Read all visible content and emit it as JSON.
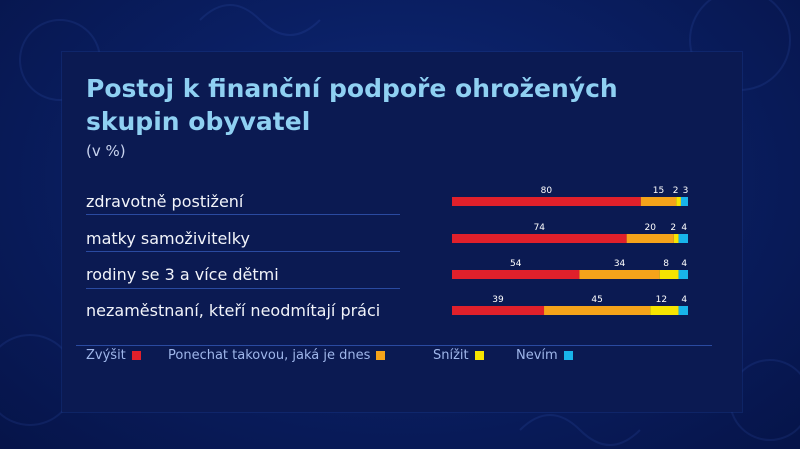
{
  "title": "Postoj k finanční podpoře ohrožených skupin obyvatel",
  "subtitle": "(v %)",
  "colors": {
    "zvysit": "#e0202b",
    "ponechat": "#f5a31a",
    "snizit": "#f6e400",
    "nevim": "#18b4ea"
  },
  "chart_data": {
    "type": "bar",
    "orientation": "horizontal",
    "stacked": true,
    "categories": [
      "zdravotně postižení",
      "matky samoživitelky",
      "rodiny se 3 a více dětmi",
      "nezaměstnaní, kteří neodmítají práci"
    ],
    "series": [
      {
        "name": "Zvýšit",
        "color": "#e0202b",
        "values": [
          80,
          74,
          54,
          39
        ]
      },
      {
        "name": "Ponechat takovou, jaká je dnes",
        "color": "#f5a31a",
        "values": [
          15,
          20,
          34,
          45
        ]
      },
      {
        "name": "Snížit",
        "color": "#f6e400",
        "values": [
          2,
          2,
          8,
          12
        ]
      },
      {
        "name": "Nevím",
        "color": "#18b4ea",
        "values": [
          3,
          4,
          4,
          4
        ]
      }
    ],
    "xlim": [
      0,
      100
    ],
    "legend": "bottom"
  }
}
